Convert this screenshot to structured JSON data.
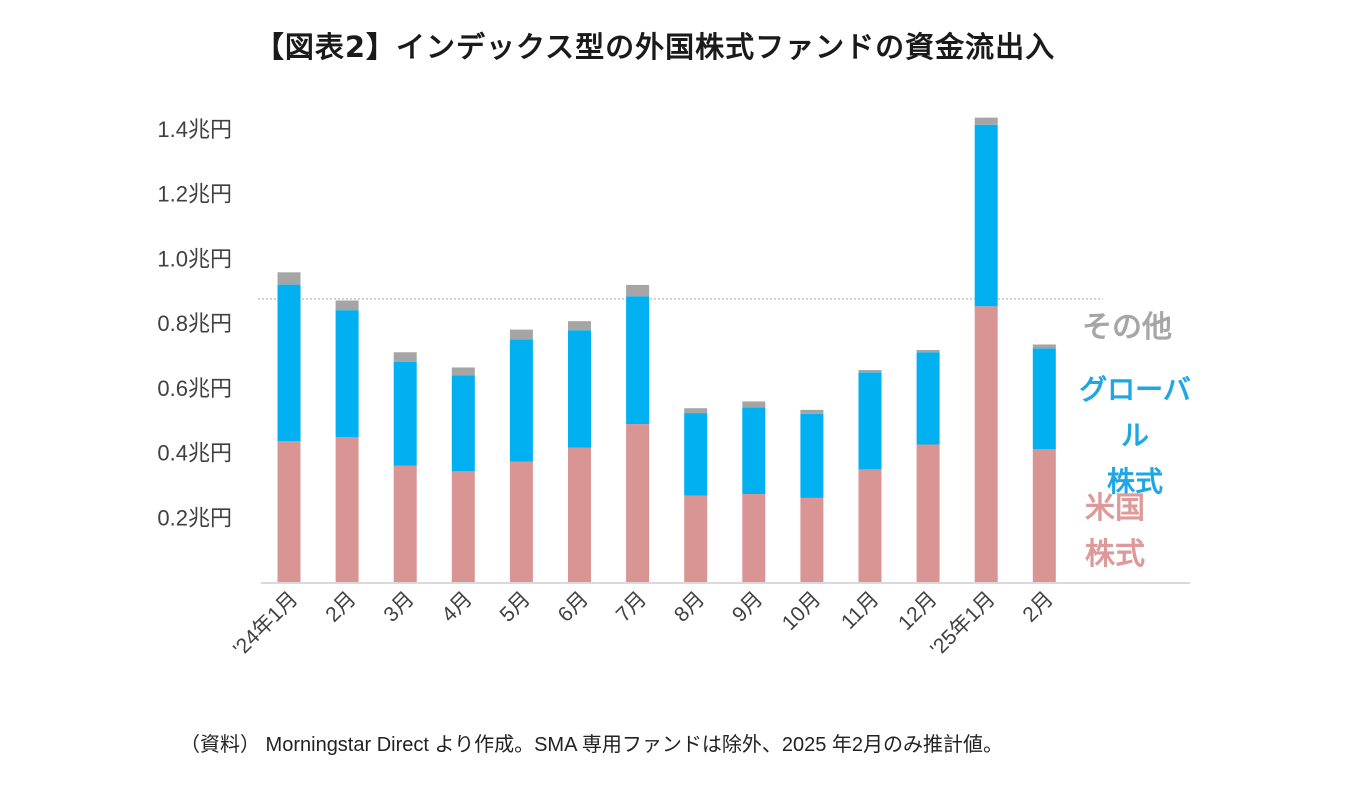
{
  "title": "【図表2】インデックス型の外国株式ファンドの資金流出入",
  "source_note": "（資料） Morningstar Direct より作成。SMA 専用ファンドは除外、2025 年2月のみ推計値。",
  "legend": {
    "other": "その他",
    "global_line1": "グローバル",
    "global_line2": "株式",
    "us_line1": "米国",
    "us_line2": "株式"
  },
  "colors": {
    "us": "#d99594",
    "global": "#00b0f0",
    "other": "#a5a5a5",
    "axis": "#d9d9d9",
    "refline": "#a6a6a6"
  },
  "chart_data": {
    "type": "bar",
    "stacked": true,
    "title": "【図表2】インデックス型の外国株式ファンドの資金流出入",
    "categories": [
      "'24年1月",
      "2月",
      "3月",
      "4月",
      "5月",
      "6月",
      "7月",
      "8月",
      "9月",
      "10月",
      "11月",
      "12月",
      "'25年1月",
      "2月"
    ],
    "series": [
      {
        "name": "米国株式",
        "values": [
          0.435,
          0.448,
          0.36,
          0.342,
          0.372,
          0.415,
          0.488,
          0.267,
          0.272,
          0.26,
          0.348,
          0.425,
          0.852,
          0.41
        ]
      },
      {
        "name": "グローバル株式",
        "values": [
          0.484,
          0.392,
          0.32,
          0.296,
          0.378,
          0.363,
          0.395,
          0.255,
          0.268,
          0.26,
          0.3,
          0.285,
          0.561,
          0.312
        ]
      },
      {
        "name": "その他",
        "values": [
          0.038,
          0.03,
          0.03,
          0.025,
          0.03,
          0.028,
          0.035,
          0.015,
          0.018,
          0.012,
          0.007,
          0.007,
          0.022,
          0.012
        ]
      }
    ],
    "yticks": [
      0.2,
      0.4,
      0.6,
      0.8,
      1.0,
      1.2,
      1.4
    ],
    "ytick_labels": [
      "0.2兆円",
      "0.4兆円",
      "0.6兆円",
      "0.8兆円",
      "1.0兆円",
      "1.2兆円",
      "1.4兆円"
    ],
    "ylim": [
      0,
      1.4
    ],
    "reference_line": 0.875,
    "grid": false,
    "legend_position": "right"
  }
}
